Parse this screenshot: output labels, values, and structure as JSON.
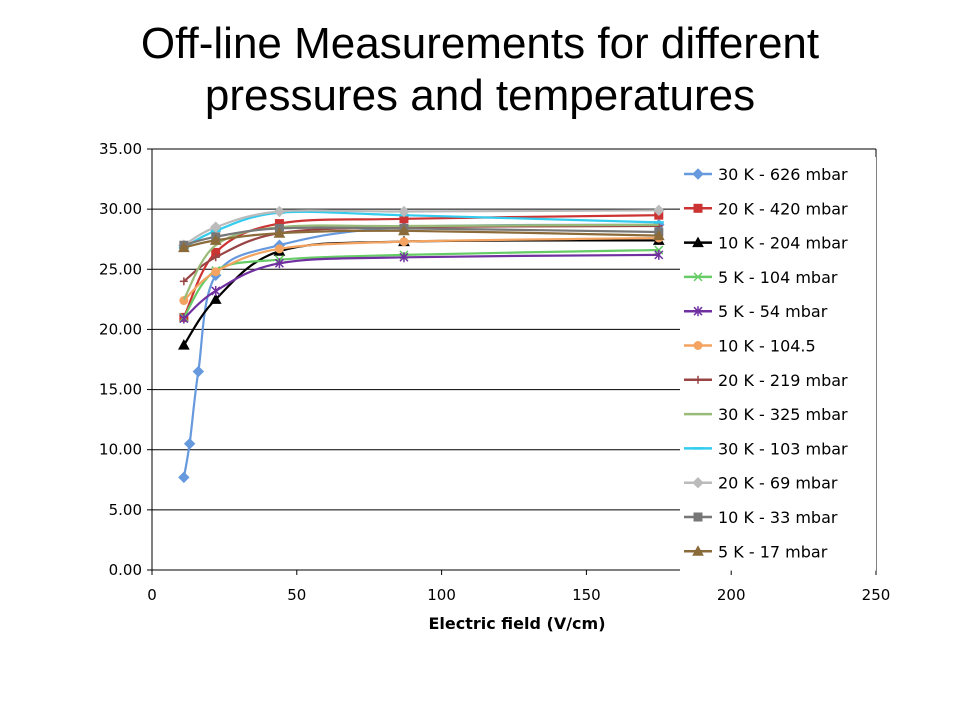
{
  "slide": {
    "title_line1": "Off-line Measurements for different",
    "title_line2": "pressures and temperatures"
  },
  "chart_data": {
    "type": "line",
    "title": "",
    "xlabel": "Electric field (V/cm)",
    "ylabel": "",
    "xlim": [
      0,
      250
    ],
    "ylim": [
      0,
      35
    ],
    "xticks": [
      0,
      50,
      100,
      150,
      200,
      250
    ],
    "yticks": [
      0,
      5,
      10,
      15,
      20,
      25,
      30,
      35
    ],
    "ytick_labels": [
      "0.00",
      "5.00",
      "10.00",
      "15.00",
      "20.00",
      "25.00",
      "30.00",
      "35.00"
    ],
    "grid": "horizontal",
    "legend_position": "right",
    "series": [
      {
        "name": "30 K - 626 mbar",
        "color": "#6699dd",
        "marker": "diamond",
        "x": [
          11,
          13,
          16,
          22,
          44,
          87,
          175
        ],
        "y": [
          7.7,
          10.5,
          16.5,
          24.5,
          27.0,
          28.5,
          28.7
        ]
      },
      {
        "name": "20 K - 420 mbar",
        "color": "#cc3333",
        "marker": "square",
        "x": [
          11,
          22,
          44,
          87,
          175
        ],
        "y": [
          21.0,
          26.4,
          28.8,
          29.2,
          29.5
        ]
      },
      {
        "name": "10 K - 204 mbar",
        "color": "#000000",
        "marker": "triangle",
        "x": [
          11,
          22,
          44,
          87,
          175
        ],
        "y": [
          18.7,
          22.5,
          26.5,
          27.3,
          27.4
        ]
      },
      {
        "name": "5 K - 104 mbar",
        "color": "#66cc66",
        "marker": "x",
        "x": [
          11,
          22,
          44,
          87,
          175
        ],
        "y": [
          21.0,
          24.9,
          25.8,
          26.2,
          26.6
        ]
      },
      {
        "name": "5 K - 54 mbar",
        "color": "#7030a0",
        "marker": "asterisk",
        "x": [
          11,
          22,
          44,
          87,
          175
        ],
        "y": [
          20.9,
          23.2,
          25.5,
          26.0,
          26.2
        ]
      },
      {
        "name": "10 K - 104.5",
        "color": "#f4a460",
        "marker": "circle",
        "x": [
          11,
          22,
          44,
          87,
          175
        ],
        "y": [
          22.4,
          24.8,
          26.7,
          27.3,
          27.6
        ]
      },
      {
        "name": "20 K - 219 mbar",
        "color": "#994444",
        "marker": "plus",
        "x": [
          11,
          22,
          44,
          87,
          175
        ],
        "y": [
          24.0,
          26.0,
          28.0,
          28.5,
          28.6
        ]
      },
      {
        "name": "30 K - 325 mbar",
        "color": "#99bb77",
        "marker": "none",
        "x": [
          11,
          22,
          44,
          87,
          175
        ],
        "y": [
          22.5,
          27.0,
          28.5,
          28.6,
          28.7
        ]
      },
      {
        "name": "30 K - 103 mbar",
        "color": "#33ccee",
        "marker": "dash",
        "x": [
          11,
          22,
          44,
          87,
          175
        ],
        "y": [
          26.8,
          28.2,
          29.7,
          29.5,
          28.9
        ]
      },
      {
        "name": "20 K - 69 mbar",
        "color": "#bbbbbb",
        "marker": "diamond",
        "x": [
          11,
          22,
          44,
          87,
          175
        ],
        "y": [
          27.0,
          28.5,
          29.8,
          29.8,
          29.9
        ]
      },
      {
        "name": "10 K - 33 mbar",
        "color": "#777777",
        "marker": "square",
        "x": [
          11,
          22,
          44,
          87,
          175
        ],
        "y": [
          27.0,
          27.7,
          28.4,
          28.4,
          28.1
        ]
      },
      {
        "name": "5 K - 17 mbar",
        "color": "#8b6b3a",
        "marker": "triangle",
        "x": [
          11,
          22,
          44,
          87,
          175
        ],
        "y": [
          26.8,
          27.4,
          28.0,
          28.2,
          27.8
        ]
      }
    ]
  }
}
